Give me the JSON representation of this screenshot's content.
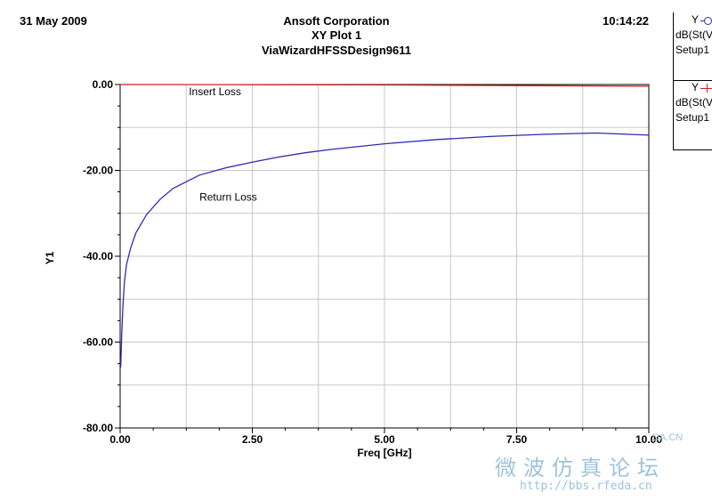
{
  "header": {
    "date": "31 May 2009",
    "company": "Ansoft Corporation",
    "time": "10:14:22",
    "plot_title": "XY Plot 1",
    "project": "ViaWizardHFSSDesign9611"
  },
  "legend": [
    {
      "row1": "Y",
      "row2": "dB(St(V",
      "row3": "Setup1",
      "marker": "circle-icon",
      "color": "#2b2bb5"
    },
    {
      "row1": "Y",
      "row2": "dB(St(V",
      "row3": "Setup1",
      "marker": "plus-icon",
      "color": "#cc2222"
    }
  ],
  "watermark": {
    "chinese": "微波仿真论坛",
    "url": "http://bbs.rfeda.cn",
    "logo": "DA.CN"
  },
  "chart_data": {
    "type": "line",
    "xlabel": "Freq [GHz]",
    "ylabel": "Y1",
    "xlim": [
      0,
      10
    ],
    "ylim": [
      -80,
      0
    ],
    "x_ticks": [
      "0.00",
      "2.50",
      "5.00",
      "7.50",
      "10.00"
    ],
    "y_ticks": [
      "0.00",
      "-20.00",
      "-40.00",
      "-60.00",
      "-80.00"
    ],
    "grid": true,
    "annotations": [
      {
        "text": "Insert Loss",
        "x": 1.3,
        "y": -2.5
      },
      {
        "text": "Return Loss",
        "x": 1.5,
        "y": -27
      }
    ],
    "series": [
      {
        "color": "#2b2bb5",
        "x": [
          0.01,
          0.02,
          0.03,
          0.05,
          0.08,
          0.12,
          0.2,
          0.3,
          0.5,
          0.75,
          1.0,
          1.5,
          2.0,
          2.5,
          3.0,
          3.5,
          4.0,
          5.0,
          6.0,
          7.0,
          8.0,
          9.0,
          10.0
        ],
        "values": [
          -66,
          -62,
          -58,
          -52,
          -46,
          -42,
          -38,
          -34.5,
          -30.3,
          -26.8,
          -24.2,
          -21.1,
          -19.4,
          -18.1,
          -16.9,
          -15.9,
          -15.1,
          -13.8,
          -12.8,
          -12.1,
          -11.6,
          -11.3,
          -11.8
        ]
      },
      {
        "color": "#cc2222",
        "x": [
          0,
          2.5,
          5.0,
          7.5,
          10.0
        ],
        "values": [
          0,
          -0.05,
          -0.1,
          -0.25,
          -0.4
        ]
      }
    ]
  }
}
